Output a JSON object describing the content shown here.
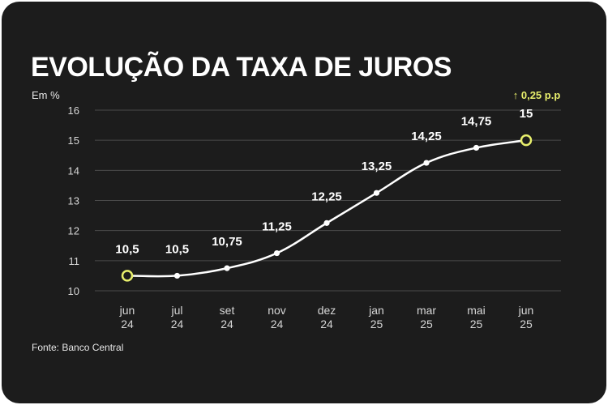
{
  "header": {
    "title": "EVOLUÇÃO DA TAXA DE JUROS",
    "unit_label": "Em %"
  },
  "footer": {
    "source": "Fonte: Banco Central"
  },
  "annotation": {
    "change": "↑ 0,25 p.p"
  },
  "colors": {
    "background": "#1c1c1c",
    "line": "#ffffff",
    "grid": "#4a4a4a",
    "highlight": "#e8ef6c"
  },
  "chart_data": {
    "type": "line",
    "title": "EVOLUÇÃO DA TAXA DE JUROS",
    "ylabel": "Em %",
    "xlabel": "",
    "ylim": [
      10,
      16
    ],
    "yticks": [
      10,
      11,
      12,
      13,
      14,
      15,
      16
    ],
    "grid": true,
    "categories": [
      [
        "jun",
        "24"
      ],
      [
        "jul",
        "24"
      ],
      [
        "set",
        "24"
      ],
      [
        "nov",
        "24"
      ],
      [
        "dez",
        "24"
      ],
      [
        "jan",
        "25"
      ],
      [
        "mar",
        "25"
      ],
      [
        "mai",
        "25"
      ],
      [
        "jun",
        "25"
      ]
    ],
    "values": [
      10.5,
      10.5,
      10.75,
      11.25,
      12.25,
      13.25,
      14.25,
      14.75,
      15
    ],
    "value_labels": [
      "10,5",
      "10,5",
      "10,75",
      "11,25",
      "12,25",
      "13,25",
      "14,25",
      "14,75",
      "15"
    ],
    "highlighted_points": [
      0,
      8
    ]
  }
}
